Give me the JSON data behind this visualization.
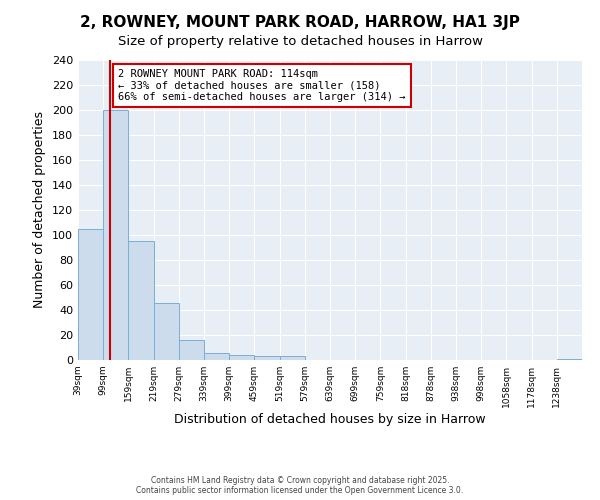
{
  "title1": "2, ROWNEY, MOUNT PARK ROAD, HARROW, HA1 3JP",
  "title2": "Size of property relative to detached houses in Harrow",
  "xlabel": "Distribution of detached houses by size in Harrow",
  "ylabel": "Number of detached properties",
  "bar_values": [
    105,
    200,
    95,
    46,
    16,
    6,
    4,
    3,
    3,
    0,
    0,
    0,
    0,
    0,
    0,
    0,
    0,
    0,
    0,
    1
  ],
  "bin_labels": [
    "39sqm",
    "99sqm",
    "159sqm",
    "219sqm",
    "279sqm",
    "339sqm",
    "399sqm",
    "459sqm",
    "519sqm",
    "579sqm",
    "639sqm",
    "699sqm",
    "759sqm",
    "818sqm",
    "878sqm",
    "938sqm",
    "998sqm",
    "1058sqm",
    "1178sqm",
    "1238sqm"
  ],
  "n_bins": 20,
  "bar_color": "#ccdcec",
  "bar_edgecolor": "#7bafd4",
  "property_size": 114,
  "annotation_line1": "2 ROWNEY MOUNT PARK ROAD: 114sqm",
  "annotation_line2": "← 33% of detached houses are smaller (158)",
  "annotation_line3": "66% of semi-detached houses are larger (314) →",
  "vline_color": "#cc0000",
  "annotation_box_edgecolor": "#cc0000",
  "ylim": [
    0,
    240
  ],
  "yticks": [
    0,
    20,
    40,
    60,
    80,
    100,
    120,
    140,
    160,
    180,
    200,
    220,
    240
  ],
  "footer1": "Contains HM Land Registry data © Crown copyright and database right 2025.",
  "footer2": "Contains public sector information licensed under the Open Government Licence 3.0.",
  "fig_facecolor": "#ffffff",
  "axes_facecolor": "#e8eef5",
  "grid_color": "#ffffff",
  "title1_fontsize": 11,
  "title2_fontsize": 9.5
}
